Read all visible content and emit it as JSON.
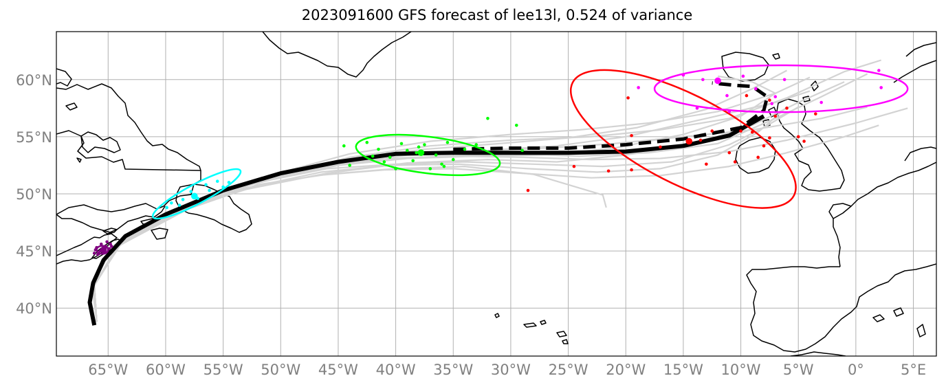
{
  "title": "2023091600 GFS forecast of lee13l, 0.524 of variance",
  "colors": {
    "background": "#ffffff",
    "frame": "#000000",
    "grid": "#b0b0b0",
    "coast": "#000000",
    "tick_text": "#808080",
    "ensemble_track": "#d3d3d3",
    "mean_track": "#000000"
  },
  "map": {
    "projection": "PlateCarree",
    "lon_range": [
      -69.5,
      7
    ],
    "lat_range": [
      35.8,
      64.2
    ],
    "lon_ticks": [
      {
        "value": -65,
        "label": "65°W"
      },
      {
        "value": -60,
        "label": "60°W"
      },
      {
        "value": -55,
        "label": "55°W"
      },
      {
        "value": -50,
        "label": "50°W"
      },
      {
        "value": -45,
        "label": "45°W"
      },
      {
        "value": -40,
        "label": "40°W"
      },
      {
        "value": -35,
        "label": "35°W"
      },
      {
        "value": -30,
        "label": "30°W"
      },
      {
        "value": -25,
        "label": "25°W"
      },
      {
        "value": -20,
        "label": "20°W"
      },
      {
        "value": -15,
        "label": "15°W"
      },
      {
        "value": -10,
        "label": "10°W"
      },
      {
        "value": -5,
        "label": "5°W"
      },
      {
        "value": 0,
        "label": "0°"
      },
      {
        "value": 5,
        "label": "5°E"
      }
    ],
    "lat_ticks": [
      {
        "value": 60,
        "label": "60°N"
      },
      {
        "value": 55,
        "label": "55°N"
      },
      {
        "value": 50,
        "label": "50°N"
      },
      {
        "value": 45,
        "label": "45°N"
      },
      {
        "value": 40,
        "label": "40°N"
      }
    ]
  },
  "mean_track": {
    "solid": [
      [
        -66.2,
        38.5
      ],
      [
        -66.6,
        40.5
      ],
      [
        -66.3,
        42.2
      ],
      [
        -65.4,
        44.2
      ],
      [
        -63.5,
        46.3
      ],
      [
        -60,
        48.2
      ],
      [
        -55,
        50.3
      ],
      [
        -50,
        51.8
      ],
      [
        -45,
        52.8
      ],
      [
        -40,
        53.5
      ],
      [
        -35,
        53.6
      ],
      [
        -30,
        53.6
      ],
      [
        -25,
        53.6
      ],
      [
        -20,
        53.7
      ],
      [
        -15,
        54.2
      ],
      [
        -11,
        55.1
      ],
      [
        -8,
        56.8
      ]
    ],
    "dashed": [
      [
        -35,
        53.9
      ],
      [
        -30,
        54.0
      ],
      [
        -25,
        54.0
      ],
      [
        -20,
        54.3
      ],
      [
        -15,
        54.8
      ],
      [
        -10,
        55.8
      ],
      [
        -8,
        57.3
      ],
      [
        -7.7,
        58.5
      ],
      [
        -9,
        59.4
      ],
      [
        -10.5,
        59.5
      ],
      [
        -12.5,
        59.7
      ]
    ]
  },
  "ensemble_tracks": [
    [
      [
        -66,
        38.8
      ],
      [
        -66.2,
        42
      ],
      [
        -64,
        45.5
      ],
      [
        -58,
        48.8
      ],
      [
        -52,
        51
      ],
      [
        -45,
        52.6
      ],
      [
        -38,
        53.2
      ],
      [
        -30,
        53.5
      ],
      [
        -24,
        53.3
      ],
      [
        -18,
        53.6
      ],
      [
        -12,
        54.4
      ],
      [
        -7,
        56.6
      ],
      [
        -3,
        58.5
      ],
      [
        1,
        60.5
      ]
    ],
    [
      [
        -66,
        38.8
      ],
      [
        -66.4,
        42
      ],
      [
        -64.5,
        45.5
      ],
      [
        -59,
        48.5
      ],
      [
        -53,
        50.4
      ],
      [
        -46,
        51.8
      ],
      [
        -39,
        52.7
      ],
      [
        -32,
        53
      ],
      [
        -26,
        52.8
      ],
      [
        -20,
        53.4
      ],
      [
        -14,
        54.4
      ],
      [
        -9,
        56
      ],
      [
        -5,
        58
      ],
      [
        -1,
        59.8
      ]
    ],
    [
      [
        -66,
        38.8
      ],
      [
        -66.3,
        42
      ],
      [
        -63.8,
        45.8
      ],
      [
        -57.5,
        49
      ],
      [
        -51,
        51.4
      ],
      [
        -44,
        53.2
      ],
      [
        -37,
        54.2
      ],
      [
        -30,
        54.7
      ],
      [
        -23,
        55
      ],
      [
        -17,
        55.6
      ],
      [
        -11,
        56.6
      ],
      [
        -6,
        58.4
      ],
      [
        -1,
        60.7
      ],
      [
        2.2,
        61.7
      ]
    ],
    [
      [
        -66,
        38.8
      ],
      [
        -66.2,
        42
      ],
      [
        -64.2,
        45.4
      ],
      [
        -58,
        48.7
      ],
      [
        -52,
        50.8
      ],
      [
        -46,
        51.7
      ],
      [
        -40,
        52.2
      ],
      [
        -34,
        52.4
      ],
      [
        -28,
        51.7
      ],
      [
        -22,
        49.9
      ],
      [
        -21.7,
        48.8
      ]
    ],
    [
      [
        -66,
        38.8
      ],
      [
        -66.2,
        42
      ],
      [
        -64,
        45.6
      ],
      [
        -58,
        48.9
      ],
      [
        -52,
        51.3
      ],
      [
        -45,
        52.9
      ],
      [
        -38,
        53.6
      ],
      [
        -32,
        53.8
      ],
      [
        -26,
        54.2
      ],
      [
        -20,
        55
      ],
      [
        -13,
        56.6
      ],
      [
        -7,
        58
      ],
      [
        -4,
        59
      ]
    ],
    [
      [
        -66,
        38.8
      ],
      [
        -66.2,
        42
      ],
      [
        -64,
        45.6
      ],
      [
        -58.5,
        48.7
      ],
      [
        -53,
        50.7
      ],
      [
        -47,
        52.2
      ],
      [
        -41,
        53.1
      ],
      [
        -35,
        53.3
      ],
      [
        -29,
        53.2
      ],
      [
        -23,
        53
      ],
      [
        -17,
        53.1
      ],
      [
        -11,
        53.7
      ],
      [
        -6,
        54.7
      ],
      [
        0,
        56.2
      ],
      [
        4.5,
        57.5
      ]
    ],
    [
      [
        -66,
        38.8
      ],
      [
        -66.2,
        42
      ],
      [
        -64.3,
        45.3
      ],
      [
        -59,
        48.4
      ],
      [
        -53,
        50.5
      ],
      [
        -47,
        51.6
      ],
      [
        -41,
        52.1
      ],
      [
        -35,
        52.2
      ],
      [
        -29,
        51.8
      ],
      [
        -23,
        51.4
      ],
      [
        -17,
        51.6
      ],
      [
        -11,
        52.4
      ],
      [
        -6,
        53.6
      ],
      [
        -1,
        55
      ],
      [
        2,
        56
      ]
    ],
    [
      [
        -66,
        38.8
      ],
      [
        -66.2,
        42
      ],
      [
        -63.7,
        45.9
      ],
      [
        -57.5,
        49.2
      ],
      [
        -51,
        51.6
      ],
      [
        -44,
        53.5
      ],
      [
        -37,
        54.6
      ],
      [
        -30,
        55.2
      ],
      [
        -24,
        55.6
      ],
      [
        -18,
        56.2
      ],
      [
        -12,
        57.2
      ],
      [
        -7,
        58.8
      ],
      [
        -4,
        60.2
      ]
    ],
    [
      [
        -66,
        38.8
      ],
      [
        -66.2,
        42
      ],
      [
        -64,
        45.5
      ],
      [
        -58,
        48.8
      ],
      [
        -52,
        51
      ],
      [
        -46,
        52.2
      ],
      [
        -40,
        52.6
      ],
      [
        -34,
        52.8
      ],
      [
        -28,
        52.6
      ],
      [
        -22,
        52.4
      ],
      [
        -16,
        52.8
      ],
      [
        -11,
        54.3
      ],
      [
        -8,
        55.8
      ],
      [
        -5,
        57.6
      ]
    ],
    [
      [
        -66,
        38.8
      ],
      [
        -66.2,
        42
      ],
      [
        -64,
        45.7
      ],
      [
        -58,
        49
      ],
      [
        -51.5,
        51.2
      ],
      [
        -45,
        52.5
      ],
      [
        -39,
        53.1
      ],
      [
        -33,
        53.3
      ],
      [
        -27,
        53.4
      ],
      [
        -21,
        54
      ],
      [
        -15,
        55.2
      ],
      [
        -10,
        56.8
      ],
      [
        -7,
        58.8
      ],
      [
        -9,
        59.8
      ],
      [
        -12,
        60.3
      ]
    ],
    [
      [
        -66,
        38.8
      ],
      [
        -66.2,
        42
      ],
      [
        -64,
        45.6
      ],
      [
        -58,
        48.9
      ],
      [
        -52,
        51.1
      ],
      [
        -45.5,
        52.6
      ],
      [
        -39,
        53.4
      ],
      [
        -33,
        53.7
      ],
      [
        -27,
        54
      ],
      [
        -21,
        54.4
      ],
      [
        -15,
        55
      ],
      [
        -9,
        55.6
      ],
      [
        -3,
        56.6
      ],
      [
        1,
        57.6
      ]
    ],
    [
      [
        -66,
        38.8
      ],
      [
        -66.2,
        42
      ],
      [
        -64,
        45.5
      ],
      [
        -58.3,
        48.6
      ],
      [
        -52.5,
        50.6
      ],
      [
        -46.5,
        51.9
      ],
      [
        -40.5,
        52.5
      ],
      [
        -34.5,
        52.6
      ],
      [
        -28.5,
        52.2
      ],
      [
        -22.5,
        51.9
      ],
      [
        -17,
        52.2
      ],
      [
        -12,
        53.4
      ],
      [
        -8.5,
        55.4
      ],
      [
        -6,
        57.6
      ]
    ],
    [
      [
        -66,
        38.8
      ],
      [
        -66.2,
        42
      ],
      [
        -64,
        45.6
      ],
      [
        -58,
        48.8
      ],
      [
        -51.5,
        51.3
      ],
      [
        -44.5,
        53
      ],
      [
        -37.5,
        53.9
      ],
      [
        -31,
        54.4
      ],
      [
        -25,
        54.9
      ],
      [
        -19,
        55.8
      ],
      [
        -13,
        57.4
      ],
      [
        -9,
        59.2
      ],
      [
        -6,
        60.8
      ]
    ]
  ],
  "clusters": [
    {
      "color": "#800080",
      "ellipse": {
        "center": [
          -65.5,
          45.1
        ],
        "half_widths": [
          0.5,
          0.35
        ],
        "angle": 0
      },
      "mean_point": [
        -65.4,
        45.1
      ],
      "points": [
        [
          -66.2,
          44.8
        ],
        [
          -66,
          45.3
        ],
        [
          -65.6,
          45.6
        ],
        [
          -65.2,
          45.4
        ],
        [
          -64.8,
          45.6
        ],
        [
          -65.9,
          44.7
        ],
        [
          -65.4,
          44.9
        ],
        [
          -64.9,
          45.2
        ],
        [
          -65.7,
          45.0
        ],
        [
          -65.1,
          45.8
        ],
        [
          -66.1,
          45.1
        ],
        [
          -64.7,
          45.4
        ]
      ]
    },
    {
      "color": "#00ffff",
      "ellipse": {
        "center": [
          -57.3,
          50.0
        ],
        "half_widths": [
          4.3,
          0.85
        ],
        "angle": -28
      },
      "mean_point": [
        -57.5,
        49.8
      ],
      "points": [
        [
          -59.5,
          49.2
        ],
        [
          -58.5,
          49.5
        ],
        [
          -57.8,
          50.2
        ],
        [
          -56.5,
          50.8
        ],
        [
          -55.5,
          51.1
        ],
        [
          -54.5,
          51.0
        ],
        [
          -58.8,
          49.0
        ],
        [
          -57.2,
          49.6
        ],
        [
          -56.2,
          50.3
        ],
        [
          -59.9,
          48.8
        ],
        [
          -55,
          50.6
        ]
      ]
    },
    {
      "color": "#00ff00",
      "ellipse": {
        "center": [
          -37.2,
          53.4
        ],
        "half_widths": [
          6.3,
          1.6
        ],
        "angle": 7
      },
      "mean_point": [
        -37.8,
        53.6
      ],
      "points": [
        [
          -44.5,
          54.2
        ],
        [
          -44,
          52.5
        ],
        [
          -42,
          53.3
        ],
        [
          -40,
          52.2
        ],
        [
          -41,
          52.8
        ],
        [
          -39,
          53.8
        ],
        [
          -38.5,
          52.9
        ],
        [
          -37,
          52.2
        ],
        [
          -36,
          52.6
        ],
        [
          -35,
          53.0
        ],
        [
          -35.5,
          54.5
        ],
        [
          -33,
          54.3
        ],
        [
          -34,
          53.9
        ],
        [
          -38,
          54.1
        ],
        [
          -39.5,
          54.4
        ],
        [
          -36.5,
          53.4
        ],
        [
          -38.2,
          53.6
        ],
        [
          -41.5,
          53.9
        ],
        [
          -40.5,
          53.2
        ],
        [
          -32,
          56.6
        ],
        [
          -29.5,
          56
        ],
        [
          -29,
          53.8
        ],
        [
          -42.5,
          54.5
        ],
        [
          -35.8,
          52.4
        ],
        [
          -37.5,
          54.3
        ]
      ]
    },
    {
      "color": "#ff0000",
      "ellipse": {
        "center": [
          -15,
          54.8
        ],
        "half_widths": [
          10.8,
          3.9
        ],
        "angle": 27
      },
      "mean_point": [
        -14.5,
        54.6
      ],
      "points": [
        [
          -28.5,
          50.3
        ],
        [
          -24.5,
          52.4
        ],
        [
          -21.5,
          52.0
        ],
        [
          -19.5,
          52.1
        ],
        [
          -19.5,
          55.1
        ],
        [
          -19.8,
          58.4
        ],
        [
          -17,
          54.1
        ],
        [
          -13,
          52.6
        ],
        [
          -12.5,
          55.5
        ],
        [
          -10,
          55.5
        ],
        [
          -9,
          55.4
        ],
        [
          -8.5,
          53.2
        ],
        [
          -8,
          54.2
        ],
        [
          -7.5,
          54.9
        ],
        [
          -7,
          56.8
        ],
        [
          -6,
          57.5
        ],
        [
          -5,
          55.0
        ],
        [
          -4.5,
          54.6
        ],
        [
          -3.5,
          57.0
        ],
        [
          -10.5,
          52.8
        ],
        [
          -11,
          53.6
        ],
        [
          -13.5,
          54.7
        ],
        [
          -9.5,
          58.6
        ],
        [
          -7.5,
          58.2
        ]
      ]
    },
    {
      "color": "#ff00ff",
      "ellipse": {
        "center": [
          -6.5,
          59.2
        ],
        "half_widths": [
          11,
          2.05
        ],
        "angle": 0
      },
      "mean_point": [
        -12,
        59.9
      ],
      "points": [
        [
          -18.9,
          59.3
        ],
        [
          -15,
          60.4
        ],
        [
          -13.3,
          60.0
        ],
        [
          -11.2,
          58.6
        ],
        [
          -11,
          57.2
        ],
        [
          -8.7,
          59.2
        ],
        [
          -7.3,
          57.9
        ],
        [
          -7,
          58.5
        ],
        [
          -3,
          58.0
        ],
        [
          2,
          60.8
        ],
        [
          2.2,
          59.3
        ],
        [
          -9.8,
          60.3
        ],
        [
          -6.2,
          60.0
        ],
        [
          -13.8,
          57.5
        ]
      ]
    }
  ]
}
